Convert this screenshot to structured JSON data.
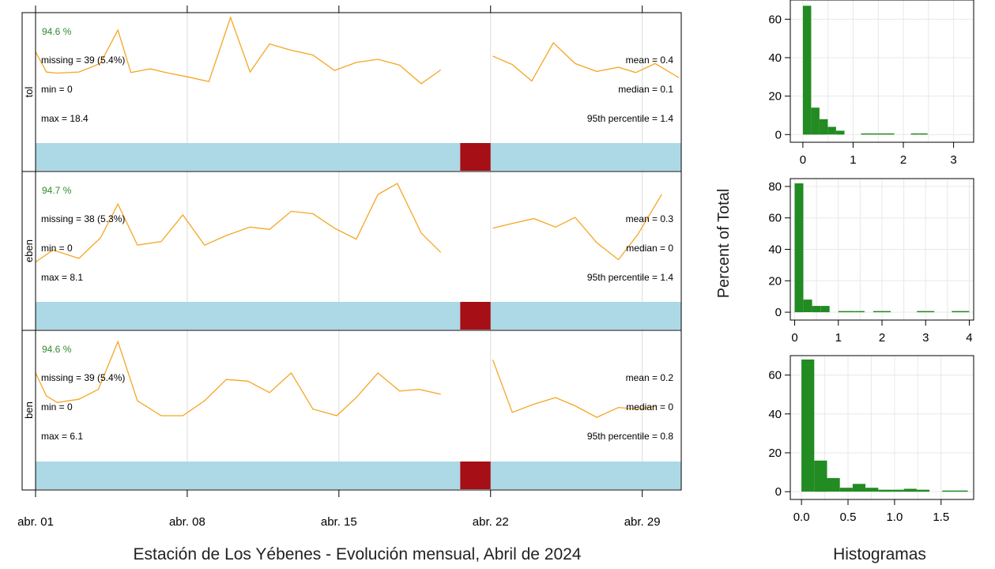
{
  "colors": {
    "line": "#f5a623",
    "coverage_available": "#add8e6",
    "coverage_missing": "#a50f15",
    "histogram": "#228b22",
    "pct_text": "#2e8b2e",
    "grid": "#dcdcdc"
  },
  "chart_data": [
    {
      "type": "line",
      "title": "",
      "xlabel": "Estación de Los Yébenes - Evolución mensual, Abril de 2024",
      "ylabel": "",
      "x_unit": "day of April 2024",
      "xlim": [
        1,
        30.8
      ],
      "x_ticks": [
        1,
        8,
        15,
        22,
        29
      ],
      "x_tick_labels": [
        "abr. 01",
        "abr. 08",
        "abr. 15",
        "abr. 22",
        "abr. 29"
      ],
      "missing_interval": [
        20.6,
        22.0
      ],
      "grid": true,
      "panels": [
        {
          "strip": "tol",
          "pct": "94.6 %",
          "missing": "missing = 39 (5.4%)",
          "min": "min = 0",
          "max": "max = 18.4",
          "mean": "mean = 0.4",
          "median": "median = 0.1",
          "p95": "95th percentile = 1.4",
          "ylim": [
            -4.4,
            18.4
          ],
          "segments": [
            [
              [
                1,
                11.9
              ],
              [
                1.5,
                8.1
              ],
              [
                2,
                7.9
              ],
              [
                3,
                8.1
              ],
              [
                3.7,
                9.2
              ],
              [
                4,
                9.8
              ],
              [
                4.8,
                16.0
              ],
              [
                5.4,
                8.0
              ],
              [
                6.3,
                8.7
              ],
              [
                7,
                8.0
              ],
              [
                8,
                7.2
              ],
              [
                9,
                6.3
              ],
              [
                10,
                18.4
              ],
              [
                10.9,
                8.1
              ],
              [
                11.8,
                13.4
              ],
              [
                12.8,
                12.2
              ],
              [
                13.8,
                11.3
              ],
              [
                14.8,
                8.4
              ],
              [
                15.8,
                9.9
              ],
              [
                16.8,
                10.5
              ],
              [
                17.8,
                9.4
              ],
              [
                18.8,
                5.9
              ],
              [
                19.7,
                8.5
              ]
            ],
            [
              [
                22.1,
                11.1
              ],
              [
                23,
                9.5
              ],
              [
                23.9,
                6.4
              ],
              [
                24.9,
                13.6
              ],
              [
                25.9,
                9.7
              ],
              [
                26.9,
                8.2
              ],
              [
                27.9,
                9.0
              ],
              [
                28.7,
                8.0
              ],
              [
                29.6,
                9.7
              ],
              [
                30.7,
                7.0
              ]
            ]
          ]
        },
        {
          "strip": "eben",
          "pct": "94.7 %",
          "missing": "missing = 38 (5.3%)",
          "min": "min = 0",
          "max": "max = 8.1",
          "mean": "mean = 0.3",
          "median": "median = 0",
          "p95": "95th percentile = 1.4",
          "ylim": [
            -1.9,
            8.1
          ],
          "segments": [
            [
              [
                1,
                1.0
              ],
              [
                1.8,
                2.0
              ],
              [
                3,
                1.3
              ],
              [
                4,
                3.0
              ],
              [
                4.8,
                5.8
              ],
              [
                5.7,
                2.4
              ],
              [
                6.8,
                2.7
              ],
              [
                7.8,
                4.9
              ],
              [
                8.8,
                2.4
              ],
              [
                9.8,
                3.2
              ],
              [
                10.9,
                3.9
              ],
              [
                11.8,
                3.7
              ],
              [
                12.8,
                5.2
              ],
              [
                13.8,
                5.0
              ],
              [
                14.8,
                3.8
              ],
              [
                15.8,
                2.9
              ],
              [
                16.8,
                6.6
              ],
              [
                17.7,
                7.5
              ],
              [
                18.8,
                3.4
              ],
              [
                19.7,
                1.8
              ]
            ],
            [
              [
                22.1,
                3.8
              ],
              [
                23,
                4.2
              ],
              [
                24,
                4.6
              ],
              [
                25,
                3.9
              ],
              [
                25.9,
                4.7
              ],
              [
                26.9,
                2.6
              ],
              [
                27.9,
                1.2
              ],
              [
                28.8,
                3.3
              ],
              [
                29.9,
                6.6
              ]
            ]
          ]
        },
        {
          "strip": "ben",
          "pct": "94.6 %",
          "missing": "missing = 39 (5.4%)",
          "min": "min = 0",
          "max": "max = 6.1",
          "mean": "mean = 0.2",
          "median": "median = 0",
          "p95": "95th percentile = 0.8",
          "ylim": [
            -1.3,
            6.1
          ],
          "segments": [
            [
              [
                1,
                3.8
              ],
              [
                1.5,
                2.4
              ],
              [
                2,
                2.0
              ],
              [
                3,
                2.2
              ],
              [
                3.9,
                2.8
              ],
              [
                4.8,
                5.7
              ],
              [
                5.7,
                2.1
              ],
              [
                6.8,
                1.2
              ],
              [
                7.8,
                1.2
              ],
              [
                8.8,
                2.1
              ],
              [
                9.8,
                3.4
              ],
              [
                10.8,
                3.3
              ],
              [
                11.8,
                2.6
              ],
              [
                12.8,
                3.8
              ],
              [
                13.8,
                1.6
              ],
              [
                14.9,
                1.2
              ],
              [
                15.8,
                2.3
              ],
              [
                16.8,
                3.8
              ],
              [
                17.8,
                2.7
              ],
              [
                18.7,
                2.8
              ],
              [
                19.7,
                2.5
              ]
            ],
            [
              [
                22.1,
                4.6
              ],
              [
                23,
                1.4
              ],
              [
                24,
                1.9
              ],
              [
                25,
                2.3
              ],
              [
                25.9,
                1.8
              ],
              [
                26.9,
                1.1
              ],
              [
                27.9,
                1.7
              ],
              [
                28.8,
                1.6
              ],
              [
                29.7,
                1.8
              ]
            ]
          ]
        }
      ]
    },
    {
      "type": "bar",
      "title": "",
      "xlabel": "Histogramas",
      "ylabel": "Percent of Total",
      "grid": true,
      "panels": [
        {
          "xlim": [
            -0.25,
            3.4
          ],
          "ylim": [
            -4,
            70
          ],
          "x_ticks": [
            0,
            1,
            2,
            3
          ],
          "x_tick_labels": [
            "0",
            "1",
            "2",
            "3"
          ],
          "y_ticks": [
            0,
            20,
            40,
            60
          ],
          "y_tick_labels": [
            "0",
            "20",
            "40",
            "60"
          ],
          "bin_start": 0.0,
          "bin_width": 0.1655,
          "values": [
            67,
            14,
            8,
            4,
            2,
            0,
            0,
            0.5,
            0.5,
            0.5,
            0.5,
            0,
            0,
            0.5,
            0.5,
            0,
            0,
            0,
            0,
            0
          ]
        },
        {
          "xlim": [
            -0.1,
            4.1
          ],
          "ylim": [
            -5,
            85
          ],
          "x_ticks": [
            0,
            1,
            2,
            3,
            4
          ],
          "x_tick_labels": [
            "0",
            "1",
            "2",
            "3",
            "4"
          ],
          "y_ticks": [
            0,
            20,
            40,
            60,
            80
          ],
          "y_tick_labels": [
            "0",
            "20",
            "40",
            "60",
            "80"
          ],
          "bin_start": 0.0,
          "bin_width": 0.2,
          "values": [
            82,
            8,
            4,
            4,
            0,
            0.5,
            0.5,
            0.5,
            0,
            0.5,
            0.5,
            0,
            0,
            0,
            0.5,
            0.5,
            0,
            0,
            0.5,
            0.5
          ]
        },
        {
          "xlim": [
            -0.12,
            1.85
          ],
          "ylim": [
            -4,
            70
          ],
          "x_ticks": [
            0,
            0.5,
            1,
            1.5
          ],
          "x_tick_labels": [
            "0.0",
            "0.5",
            "1.0",
            "1.5"
          ],
          "y_ticks": [
            0,
            20,
            40,
            60
          ],
          "y_tick_labels": [
            "0",
            "20",
            "40",
            "60"
          ],
          "bin_start": 0.0,
          "bin_width": 0.1375,
          "values": [
            68,
            16,
            7,
            2,
            4,
            2,
            1,
            1,
            1.5,
            1,
            0,
            0.5,
            0.5,
            0
          ]
        }
      ]
    }
  ]
}
